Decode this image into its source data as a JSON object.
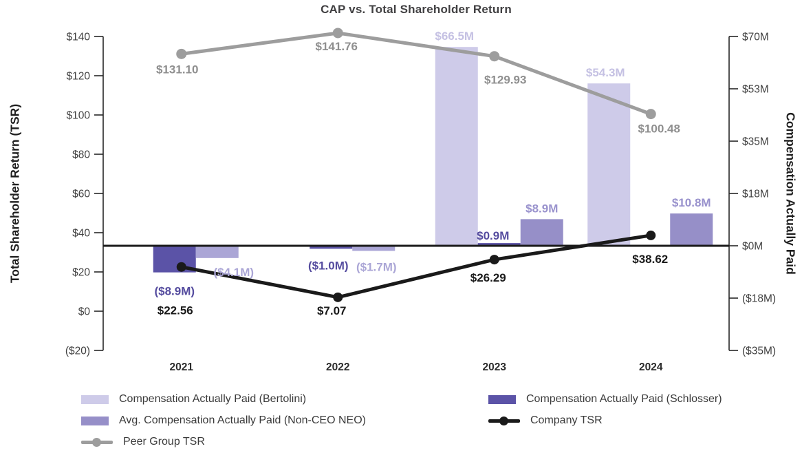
{
  "title": "CAP vs. Total Shareholder Return",
  "chart_data": {
    "type": "combo-bar-line",
    "title": "CAP vs. Total Shareholder Return",
    "categories": [
      "2021",
      "2022",
      "2023",
      "2024"
    ],
    "left_axis": {
      "label": "Total Shareholder Return (TSR)",
      "ticks": [
        "$140",
        "$120",
        "$100",
        "$80",
        "$60",
        "$40",
        "$20",
        "$0",
        "($20)"
      ],
      "ylim": [
        -20,
        140
      ]
    },
    "right_axis": {
      "label": "Compensation Actually Paid",
      "ticks": [
        "$70M",
        "$53M",
        "$35M",
        "$18M",
        "$0M",
        "($18M)",
        "($35M)"
      ],
      "ylim_millions": [
        -35,
        70
      ]
    },
    "bar_series": [
      {
        "name": "Compensation Actually Paid (Bertolini)",
        "color": "#cecbe9",
        "values_m": [
          null,
          null,
          66.5,
          54.3
        ],
        "labels": [
          "",
          "",
          "$66.5M",
          "$54.3M"
        ],
        "label_colors": [
          "",
          "",
          "#c5c1e3",
          "#c5c1e3"
        ]
      },
      {
        "name": "Compensation Actually Paid (Schlosser)",
        "color": "#5b53a7",
        "values_m": [
          -8.9,
          -1.0,
          0.9,
          null
        ],
        "labels": [
          "($8.9M)",
          "($1.0M)",
          "$0.9M",
          ""
        ],
        "label_colors": [
          "#554c9f",
          "#554c9f",
          "#554c9f",
          ""
        ]
      },
      {
        "name": "Avg. Compensation Actually Paid (Non-CEO NEO)",
        "color": "#968fc8",
        "colors": [
          "#aba6d6",
          "#aba6d6",
          "#968fc8",
          "#968fc8"
        ],
        "values_m": [
          -4.1,
          -1.7,
          8.9,
          10.8
        ],
        "labels": [
          "($4.1M)",
          "($1.7M)",
          "$8.9M",
          "$10.8M"
        ],
        "label_colors": [
          "#aba6d6",
          "#aba6d6",
          "#9992cd",
          "#9992cd"
        ]
      }
    ],
    "line_series": [
      {
        "name": "Company TSR",
        "color": "#1a1a1a",
        "label_color": "#1a1a1a",
        "values": [
          22.56,
          7.07,
          26.29,
          38.62
        ],
        "labels": [
          "$22.56",
          "$7.07",
          "$26.29",
          "$38.62"
        ]
      },
      {
        "name": "Peer Group TSR",
        "color": "#9d9d9d",
        "label_color": "#8f8f8f",
        "values": [
          131.1,
          141.76,
          129.93,
          100.48
        ],
        "labels": [
          "$131.10",
          "$141.76",
          "$129.93",
          "$100.48"
        ]
      }
    ],
    "grid": "off",
    "legend_position": "bottom"
  }
}
